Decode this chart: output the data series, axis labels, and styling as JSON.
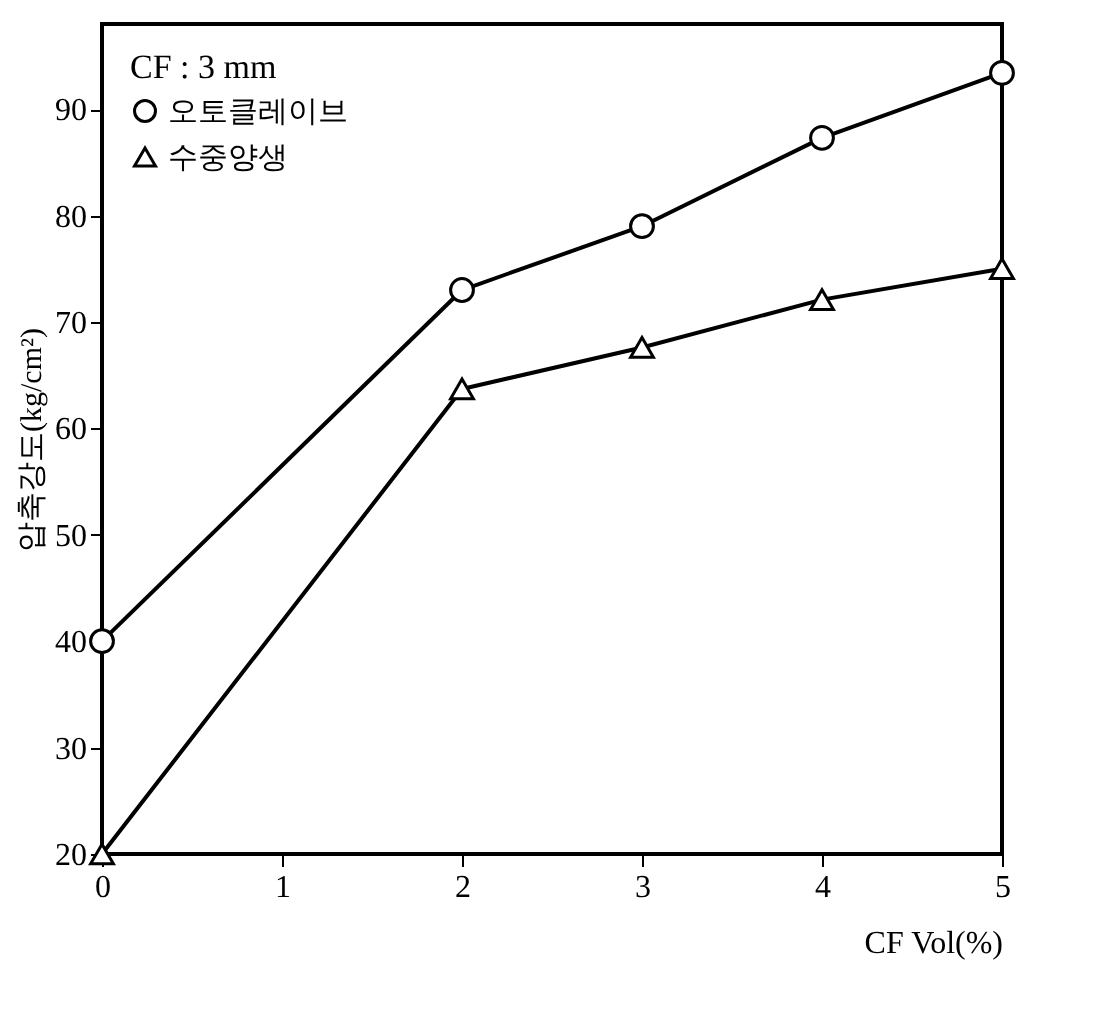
{
  "chart_data": {
    "type": "line",
    "xlabel": "CF Vol(%)",
    "ylabel": "압축강도(kg/cm²)",
    "legend_title": "CF : 3 mm",
    "legend": "top left",
    "grid": false,
    "line_style": "solid",
    "x": [
      0,
      2,
      3,
      4,
      5
    ],
    "xlim": [
      0,
      5
    ],
    "xticks": [
      0,
      1,
      2,
      3,
      4,
      5
    ],
    "ylim": [
      20,
      98
    ],
    "yticks": [
      20,
      30,
      40,
      50,
      60,
      70,
      80,
      90
    ],
    "series": [
      {
        "name": "오토클레이브",
        "color": "#000000",
        "marker": "circle",
        "values": [
          40,
          73,
          79,
          87.3,
          93.4
        ]
      },
      {
        "name": "수중양생",
        "color": "#000000",
        "marker": "triangle",
        "values": [
          20,
          63.7,
          67.6,
          72.1,
          75
        ]
      }
    ]
  }
}
